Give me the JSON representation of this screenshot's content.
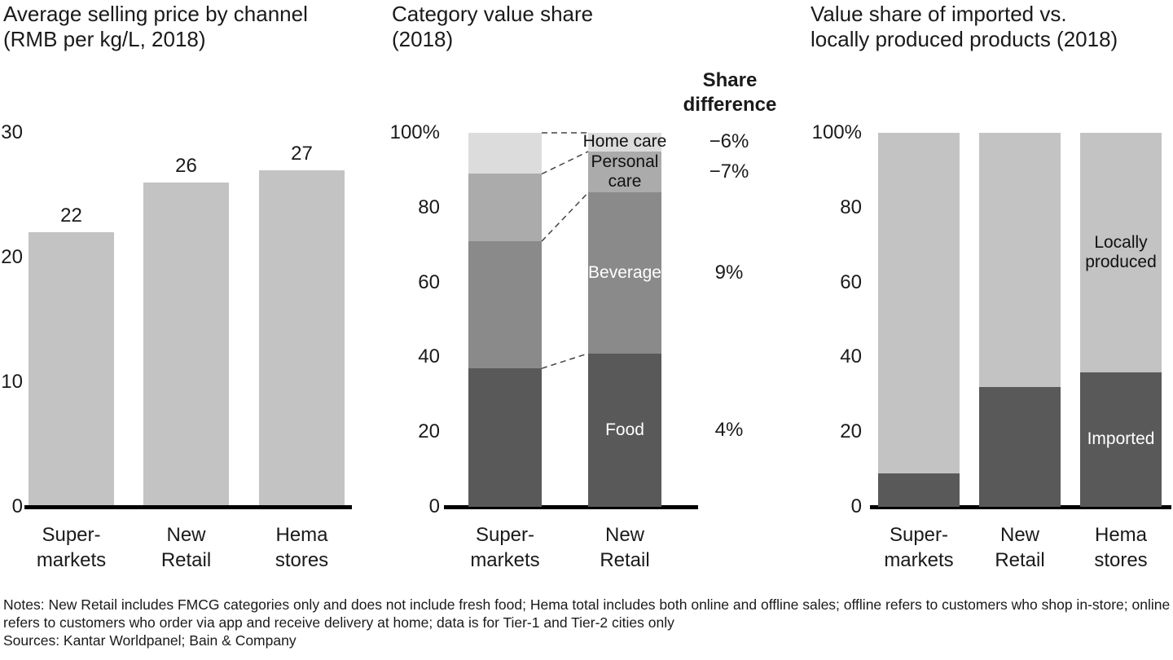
{
  "page": {
    "notes": "Notes: New Retail includes FMCG categories only and does not include fresh food; Hema total includes both online and offline sales; offline refers to customers who shop in-store; online refers to customers who order via app and receive delivery at home; data is for Tier-1 and Tier-2 cities only",
    "sources": "Sources: Kantar Worldpanel; Bain & Company"
  },
  "chart_data": [
    {
      "type": "bar",
      "title": "Average selling price by channel\n(RMB per kg/L, 2018)",
      "categories": [
        "Super-\nmarkets",
        "New\nRetail",
        "Hema\nstores"
      ],
      "values": [
        22,
        26,
        27
      ],
      "value_labels": [
        "22",
        "26",
        "27"
      ],
      "ylim": [
        0,
        30
      ],
      "yticks": [
        0,
        10,
        20,
        30
      ],
      "ytick_labels": [
        "0",
        "10",
        "20",
        "30"
      ],
      "bar_color": "#c3c3c3"
    },
    {
      "type": "stacked-bar",
      "title": "Category value share\n(2018)",
      "categories": [
        "Super-\nmarkets",
        "New\nRetail"
      ],
      "series": [
        {
          "name": "Food",
          "values": [
            37,
            41
          ],
          "color": "#595959",
          "label": {
            "text": "Food",
            "on": 1,
            "color": "#ffffff"
          },
          "share_difference": "4%"
        },
        {
          "name": "Beverage",
          "values": [
            34,
            43
          ],
          "color": "#8a8a8a",
          "label": {
            "text": "Beverage",
            "on": 1,
            "color": "#ffffff"
          },
          "share_difference": "9%"
        },
        {
          "name": "Personal care",
          "values": [
            18,
            11
          ],
          "color": "#ababab",
          "label": {
            "text": "Personal\ncare",
            "on": 1,
            "color": "#111111"
          },
          "share_difference": "−7%"
        },
        {
          "name": "Home care",
          "values": [
            11,
            5
          ],
          "color": "#dcdcdc",
          "label": {
            "text": "Home care",
            "on": 1,
            "color": "#111111"
          },
          "share_difference": "−6%"
        }
      ],
      "ylim": [
        0,
        100
      ],
      "yticks": [
        0,
        20,
        40,
        60,
        80,
        100
      ],
      "ytick_labels": [
        "0",
        "20",
        "40",
        "60",
        "80",
        "100%"
      ],
      "share_difference_header": "Share\ndifference",
      "connectors": true
    },
    {
      "type": "stacked-bar",
      "title": "Value share of imported vs.\nlocally produced products (2018)",
      "categories": [
        "Super-\nmarkets",
        "New\nRetail",
        "Hema\nstores"
      ],
      "series": [
        {
          "name": "Imported",
          "values": [
            9,
            32,
            36
          ],
          "color": "#595959",
          "label": {
            "text": "Imported",
            "on": 2,
            "color": "#ffffff"
          }
        },
        {
          "name": "Locally produced",
          "values": [
            91,
            68,
            64
          ],
          "color": "#c3c3c3",
          "label": {
            "text": "Locally\nproduced",
            "on": 2,
            "color": "#111111"
          }
        }
      ],
      "ylim": [
        0,
        100
      ],
      "yticks": [
        0,
        20,
        40,
        60,
        80,
        100
      ],
      "ytick_labels": [
        "0",
        "20",
        "40",
        "60",
        "80",
        "100%"
      ]
    }
  ]
}
